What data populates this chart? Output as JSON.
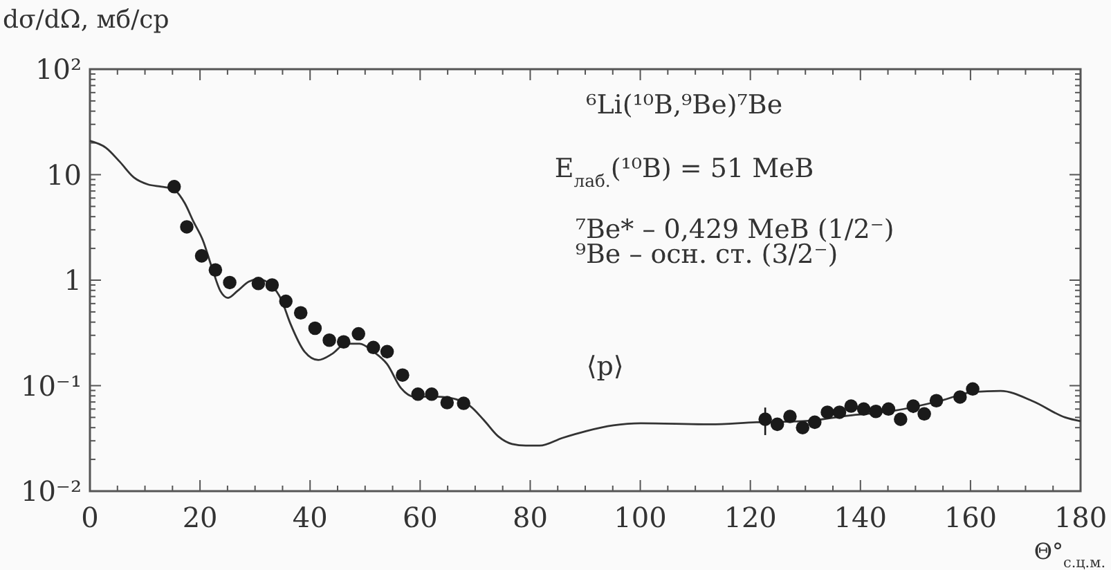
{
  "chart_data": {
    "type": "scatter",
    "xlabel": "Θ°$_{с.ц.м.}$",
    "ylabel": "dσ/dΩ, мб/ср",
    "log": "y",
    "xlim": [
      0,
      180
    ],
    "ylim": [
      0.01,
      100
    ],
    "xticks": [
      0,
      {
        "value": 5,
        "label": null
      },
      {
        "value": 10,
        "label": null
      },
      {
        "value": 15,
        "label": null
      },
      20,
      {
        "value": 25,
        "label": null
      },
      {
        "value": 30,
        "label": null
      },
      {
        "value": 35,
        "label": null
      },
      40,
      {
        "value": 45,
        "label": null
      },
      {
        "value": 50,
        "label": null
      },
      {
        "value": 55,
        "label": null
      },
      60,
      {
        "value": 65,
        "label": null
      },
      {
        "value": 70,
        "label": null
      },
      {
        "value": 75,
        "label": null
      },
      80,
      {
        "value": 85,
        "label": null
      },
      {
        "value": 90,
        "label": null
      },
      {
        "value": 95,
        "label": null
      },
      100,
      {
        "value": 105,
        "label": null
      },
      {
        "value": 110,
        "label": null
      },
      {
        "value": 115,
        "label": null
      },
      120,
      {
        "value": 125,
        "label": null
      },
      {
        "value": 130,
        "label": null
      },
      {
        "value": 135,
        "label": null
      },
      140,
      {
        "value": 145,
        "label": null
      },
      {
        "value": 150,
        "label": null
      },
      {
        "value": 155,
        "label": null
      },
      160,
      {
        "value": 165,
        "label": null
      },
      {
        "value": 170,
        "label": null
      },
      {
        "value": 175,
        "label": null
      },
      180
    ],
    "yticks": [
      {
        "value": 0.01,
        "label": "10⁻²"
      },
      {
        "value": 0.02,
        "label": null
      },
      {
        "value": 0.03,
        "label": null
      },
      {
        "value": 0.04,
        "label": null
      },
      {
        "value": 0.05,
        "label": null
      },
      {
        "value": 0.06,
        "label": null
      },
      {
        "value": 0.07,
        "label": null
      },
      {
        "value": 0.08,
        "label": null
      },
      {
        "value": 0.09,
        "label": null
      },
      {
        "value": 0.1,
        "label": "10⁻¹"
      },
      {
        "value": 0.2,
        "label": null
      },
      {
        "value": 0.3,
        "label": null
      },
      {
        "value": 0.4,
        "label": null
      },
      {
        "value": 0.5,
        "label": null
      },
      {
        "value": 0.6,
        "label": null
      },
      {
        "value": 0.7,
        "label": null
      },
      {
        "value": 0.8,
        "label": null
      },
      {
        "value": 0.9,
        "label": null
      },
      1,
      {
        "value": 2,
        "label": null
      },
      {
        "value": 3,
        "label": null
      },
      {
        "value": 4,
        "label": null
      },
      {
        "value": 5,
        "label": null
      },
      {
        "value": 6,
        "label": null
      },
      {
        "value": 7,
        "label": null
      },
      {
        "value": 8,
        "label": null
      },
      {
        "value": 9,
        "label": null
      },
      10,
      {
        "value": 20,
        "label": null
      },
      {
        "value": 30,
        "label": null
      },
      {
        "value": 40,
        "label": null
      },
      {
        "value": 50,
        "label": null
      },
      {
        "value": 60,
        "label": null
      },
      {
        "value": 70,
        "label": null
      },
      {
        "value": 80,
        "label": null
      },
      {
        "value": 90,
        "label": null
      },
      {
        "value": 100,
        "label": "10²"
      }
    ],
    "grid": false,
    "marker": "circle",
    "series": [
      {
        "type": "line",
        "color": "#333333",
        "x": [
          0,
          2.9,
          5.4,
          8,
          10.5,
          13,
          15.1,
          17.2,
          18.8,
          20.5,
          22.2,
          23.7,
          25.1,
          26.8,
          28.9,
          30.6,
          33.1,
          34.8,
          36.4,
          39,
          41.5,
          44,
          46.5,
          49,
          51.5,
          54,
          56.5,
          59.1,
          61.6,
          64.1,
          66.6,
          69.1,
          71.6,
          74.2,
          76.7,
          79.2,
          81.7,
          85.9,
          90.1,
          95.1,
          100.1,
          112.7,
          121.1,
          129.5,
          137.8,
          146.2,
          154.6,
          160.5,
          165.5,
          171.4,
          177.2,
          180
        ],
        "values": [
          20.9,
          18,
          13.3,
          9.4,
          8.1,
          7.7,
          7.3,
          5.4,
          3.6,
          2.4,
          1.3,
          0.79,
          0.68,
          0.79,
          0.97,
          1.02,
          0.88,
          0.65,
          0.39,
          0.21,
          0.175,
          0.2,
          0.25,
          0.25,
          0.21,
          0.16,
          0.095,
          0.078,
          0.079,
          0.078,
          0.074,
          0.064,
          0.047,
          0.033,
          0.028,
          0.027,
          0.027,
          0.032,
          0.037,
          0.042,
          0.044,
          0.043,
          0.045,
          0.046,
          0.052,
          0.058,
          0.072,
          0.087,
          0.089,
          0.071,
          0.05,
          0.046
        ],
        "line_style": "solid",
        "marker": "none"
      },
      {
        "color": "#1a1a1a",
        "x": [
          15.3,
          17.6,
          20.3,
          22.8,
          25.4,
          30.6,
          33.1,
          35.6,
          38.3,
          40.9,
          43.5,
          46.1,
          48.8,
          51.5,
          54,
          56.8,
          59.6,
          62.1,
          64.9,
          67.9,
          122.7,
          124.9,
          127.2,
          129.5,
          131.7,
          134,
          136.2,
          138.3,
          140.6,
          142.8,
          145.1,
          147.3,
          149.6,
          151.6,
          153.8,
          158.1,
          160.4
        ],
        "values": [
          7.7,
          3.2,
          1.7,
          1.25,
          0.95,
          0.93,
          0.9,
          0.63,
          0.49,
          0.35,
          0.27,
          0.26,
          0.31,
          0.23,
          0.21,
          0.126,
          0.083,
          0.083,
          0.069,
          0.068,
          0.048,
          0.043,
          0.051,
          0.04,
          0.045,
          0.056,
          0.056,
          0.064,
          0.06,
          0.057,
          0.06,
          0.048,
          0.064,
          0.054,
          0.072,
          0.078,
          0.093
        ],
        "errors": [
          null,
          null,
          null,
          null,
          null,
          null,
          null,
          null,
          null,
          null,
          null,
          null,
          null,
          null,
          null,
          null,
          null,
          null,
          null,
          0.008,
          0.014,
          null,
          null,
          null,
          null,
          0.007,
          null,
          null,
          null,
          null,
          null,
          null,
          0.009,
          0.007,
          null,
          0.01,
          null
        ]
      }
    ],
    "annotations": [
      "⁶Li(¹⁰B,⁹Be)⁷Be",
      "E$_{лаб.}$(¹⁰B) = 51 MeB",
      "⁷Be* – 0,429 MeB (1/2⁻)",
      "⁹Be –  осн. ст. (3/2⁻)",
      "⟨p⟩"
    ]
  }
}
